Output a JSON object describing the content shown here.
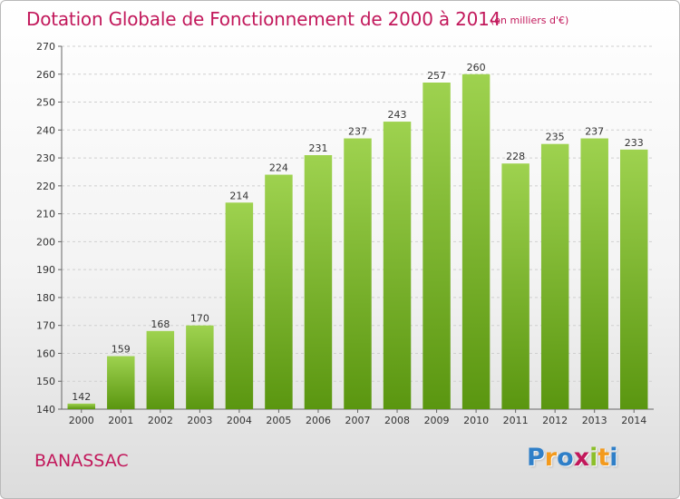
{
  "header": {
    "title": "Dotation Globale de Fonctionnement de 2000 à 2014",
    "subtitle": "(en milliers d'€)"
  },
  "footer": {
    "commune": "BANASSAC",
    "brand": "Proxiti"
  },
  "colors": {
    "title": "#c2185b",
    "bar_light": "#9ed24f",
    "bar_dark": "#5a9610",
    "grid": "#cfcfcf",
    "brand_letters": [
      "#2f7fc8",
      "#f39a1d",
      "#2f7fc8",
      "#c2185b",
      "#8cbf2a",
      "#f39a1d",
      "#2f7fc8"
    ]
  },
  "chart_data": {
    "type": "bar",
    "categories": [
      "2000",
      "2001",
      "2002",
      "2003",
      "2004",
      "2005",
      "2006",
      "2007",
      "2008",
      "2009",
      "2010",
      "2011",
      "2012",
      "2013",
      "2014"
    ],
    "values": [
      142,
      159,
      168,
      170,
      214,
      224,
      231,
      237,
      243,
      257,
      260,
      228,
      235,
      237,
      233
    ],
    "ylim": [
      140,
      270
    ],
    "yticks": [
      140,
      150,
      160,
      170,
      180,
      190,
      200,
      210,
      220,
      230,
      240,
      250,
      260,
      270
    ],
    "grid": "horizontal dashed",
    "legend": "none"
  }
}
